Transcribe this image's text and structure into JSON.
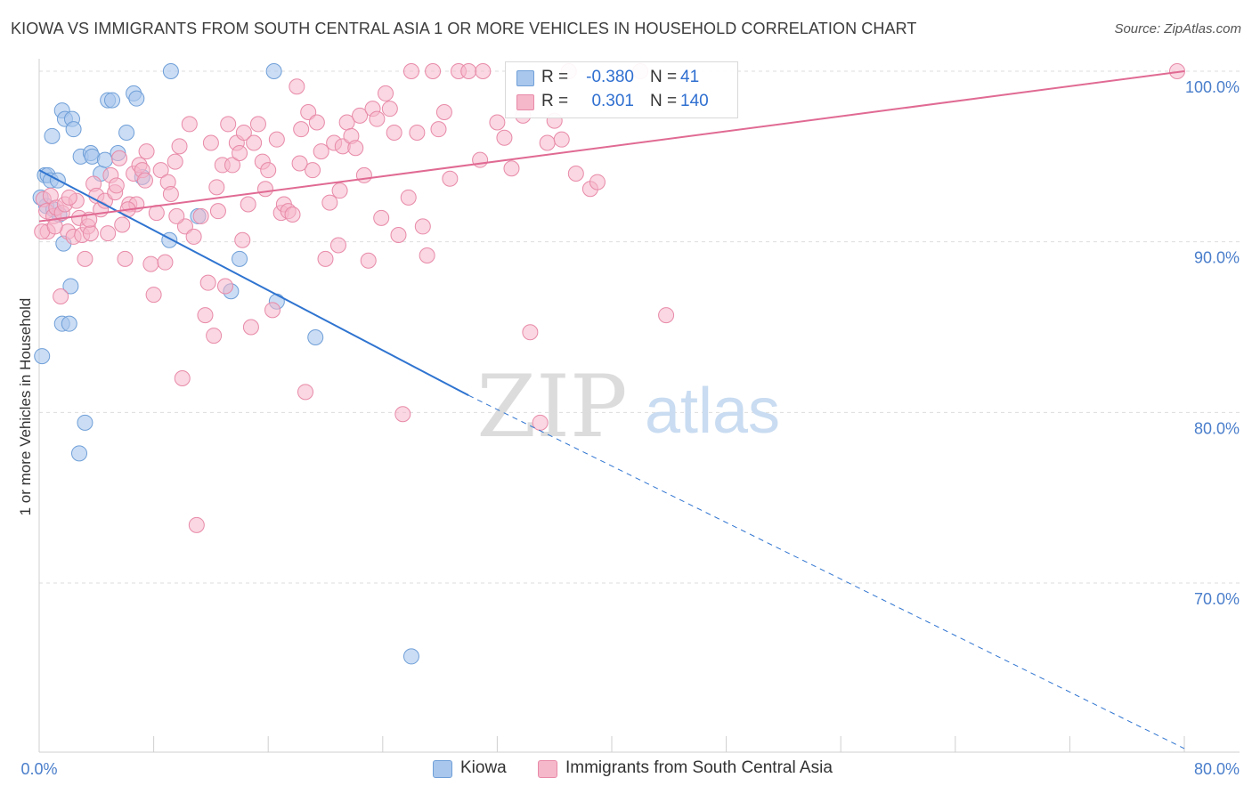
{
  "header": {
    "title": "KIOWA VS IMMIGRANTS FROM SOUTH CENTRAL ASIA 1 OR MORE VEHICLES IN HOUSEHOLD CORRELATION CHART",
    "source": "Source: ZipAtlas.com"
  },
  "watermark": {
    "zip": "ZIP",
    "atlas": "atlas"
  },
  "colors": {
    "blue_fill": "#a9c7ec",
    "blue_stroke": "#6f9fd8",
    "blue_line": "#2f74d0",
    "pink_fill": "#f5b7ca",
    "pink_stroke": "#e88aa8",
    "pink_line": "#e06a93",
    "tick_text": "#4a7ecb",
    "grid": "#dddddd"
  },
  "legend": {
    "rows": [
      {
        "r_label": "R =",
        "r_value": "-0.380",
        "n_label": "N =",
        "n_value": "41"
      },
      {
        "r_label": "R =",
        "r_value": "0.301",
        "n_label": "N =",
        "n_value": "140"
      }
    ]
  },
  "bottom_legend": {
    "kiowa": "Kiowa",
    "immigrants": "Immigrants from South Central Asia"
  },
  "chart_data": {
    "type": "scatter",
    "title": "KIOWA VS IMMIGRANTS FROM SOUTH CENTRAL ASIA 1 OR MORE VEHICLES IN HOUSEHOLD CORRELATION CHART",
    "xlabel": "",
    "ylabel": "1 or more Vehicles in Household",
    "xlim": [
      0,
      80
    ],
    "ylim": [
      60,
      102
    ],
    "x_tick_labels": [
      "0.0%",
      "80.0%"
    ],
    "y_ticks": [
      100,
      90,
      80,
      70
    ],
    "y_tick_labels": [
      "100.0%",
      "90.0%",
      "80.0%",
      "70.0%"
    ],
    "grid": true,
    "legend_position": "top-center",
    "series": [
      {
        "name": "Kiowa",
        "R": -0.38,
        "N": 41,
        "trend": {
          "x0": 0,
          "y0": 94.2,
          "x1": 30,
          "y1": 81.0,
          "dashed_to_x": 80,
          "dashed_to_y": 60.3
        },
        "points": [
          [
            0.2,
            83.3
          ],
          [
            0.4,
            93.9
          ],
          [
            0.5,
            92.1
          ],
          [
            0.6,
            93.9
          ],
          [
            0.8,
            93.6
          ],
          [
            0.9,
            96.2
          ],
          [
            1.0,
            91.9
          ],
          [
            1.3,
            93.6
          ],
          [
            1.4,
            91.6
          ],
          [
            1.6,
            97.7
          ],
          [
            1.6,
            85.2
          ],
          [
            1.7,
            89.9
          ],
          [
            1.8,
            97.2
          ],
          [
            2.1,
            85.2
          ],
          [
            2.2,
            87.4
          ],
          [
            2.3,
            97.2
          ],
          [
            2.4,
            96.6
          ],
          [
            2.8,
            77.6
          ],
          [
            2.9,
            95.0
          ],
          [
            3.2,
            79.4
          ],
          [
            3.6,
            95.2
          ],
          [
            3.7,
            95.0
          ],
          [
            4.3,
            94.0
          ],
          [
            4.6,
            94.8
          ],
          [
            4.8,
            98.3
          ],
          [
            5.1,
            98.3
          ],
          [
            5.5,
            95.2
          ],
          [
            6.1,
            96.4
          ],
          [
            6.6,
            98.7
          ],
          [
            6.8,
            98.4
          ],
          [
            7.2,
            93.8
          ],
          [
            9.1,
            90.1
          ],
          [
            9.2,
            100.0
          ],
          [
            11.1,
            91.5
          ],
          [
            13.4,
            87.1
          ],
          [
            14.0,
            89.0
          ],
          [
            16.4,
            100.0
          ],
          [
            16.6,
            86.5
          ],
          [
            19.3,
            84.4
          ],
          [
            26.0,
            65.7
          ],
          [
            0.1,
            92.6
          ]
        ]
      },
      {
        "name": "Immigrants from South Central Asia",
        "R": 0.301,
        "N": 140,
        "trend": {
          "x0": 0,
          "y0": 91.2,
          "x1": 80,
          "y1": 100.0
        },
        "points": [
          [
            0.3,
            92.5
          ],
          [
            0.5,
            91.8
          ],
          [
            0.6,
            90.6
          ],
          [
            0.8,
            92.7
          ],
          [
            1.0,
            91.5
          ],
          [
            1.2,
            92.0
          ],
          [
            1.5,
            86.8
          ],
          [
            1.6,
            91.7
          ],
          [
            1.8,
            92.2
          ],
          [
            2.0,
            90.6
          ],
          [
            2.4,
            90.3
          ],
          [
            2.6,
            92.4
          ],
          [
            2.8,
            91.4
          ],
          [
            3.0,
            90.4
          ],
          [
            3.2,
            89.0
          ],
          [
            3.4,
            90.9
          ],
          [
            3.6,
            90.5
          ],
          [
            3.8,
            93.4
          ],
          [
            4.0,
            92.7
          ],
          [
            4.3,
            91.9
          ],
          [
            4.6,
            92.4
          ],
          [
            4.8,
            90.5
          ],
          [
            5.0,
            93.9
          ],
          [
            5.3,
            92.9
          ],
          [
            5.6,
            94.9
          ],
          [
            5.8,
            91.0
          ],
          [
            6.0,
            89.0
          ],
          [
            6.3,
            92.2
          ],
          [
            6.6,
            94.0
          ],
          [
            6.8,
            92.2
          ],
          [
            7.0,
            94.5
          ],
          [
            7.2,
            94.2
          ],
          [
            7.5,
            95.3
          ],
          [
            7.8,
            88.7
          ],
          [
            8.0,
            86.9
          ],
          [
            8.2,
            91.7
          ],
          [
            8.5,
            94.2
          ],
          [
            8.8,
            88.8
          ],
          [
            9.0,
            93.5
          ],
          [
            9.2,
            92.8
          ],
          [
            9.5,
            94.7
          ],
          [
            9.8,
            95.6
          ],
          [
            10.0,
            82.0
          ],
          [
            10.2,
            90.9
          ],
          [
            10.5,
            96.9
          ],
          [
            10.8,
            90.3
          ],
          [
            11.0,
            73.4
          ],
          [
            11.3,
            91.5
          ],
          [
            11.6,
            85.7
          ],
          [
            11.8,
            87.6
          ],
          [
            12.0,
            95.8
          ],
          [
            12.2,
            84.5
          ],
          [
            12.5,
            91.8
          ],
          [
            12.8,
            94.5
          ],
          [
            13.0,
            87.4
          ],
          [
            13.2,
            96.9
          ],
          [
            13.5,
            94.5
          ],
          [
            13.8,
            95.8
          ],
          [
            14.0,
            95.2
          ],
          [
            14.3,
            96.4
          ],
          [
            14.6,
            92.2
          ],
          [
            14.8,
            85.0
          ],
          [
            15.0,
            95.8
          ],
          [
            15.3,
            96.9
          ],
          [
            15.6,
            94.7
          ],
          [
            15.8,
            93.1
          ],
          [
            16.0,
            94.2
          ],
          [
            16.3,
            86.0
          ],
          [
            16.6,
            96.0
          ],
          [
            16.9,
            91.7
          ],
          [
            17.1,
            92.2
          ],
          [
            17.4,
            91.8
          ],
          [
            17.7,
            91.6
          ],
          [
            18.0,
            99.1
          ],
          [
            18.3,
            96.6
          ],
          [
            18.6,
            81.2
          ],
          [
            18.8,
            97.6
          ],
          [
            19.1,
            94.2
          ],
          [
            19.4,
            97.0
          ],
          [
            19.7,
            95.3
          ],
          [
            20.0,
            89.0
          ],
          [
            20.3,
            92.3
          ],
          [
            20.6,
            95.8
          ],
          [
            20.9,
            89.8
          ],
          [
            21.2,
            95.6
          ],
          [
            21.5,
            97.0
          ],
          [
            21.8,
            96.2
          ],
          [
            22.1,
            95.5
          ],
          [
            22.4,
            97.4
          ],
          [
            22.7,
            93.9
          ],
          [
            23.0,
            88.9
          ],
          [
            23.3,
            97.8
          ],
          [
            23.6,
            97.2
          ],
          [
            23.9,
            91.4
          ],
          [
            24.2,
            98.7
          ],
          [
            24.5,
            97.8
          ],
          [
            24.8,
            96.4
          ],
          [
            25.1,
            90.4
          ],
          [
            25.4,
            79.9
          ],
          [
            26.0,
            100.0
          ],
          [
            26.4,
            96.4
          ],
          [
            26.8,
            90.9
          ],
          [
            27.1,
            89.2
          ],
          [
            27.5,
            100.0
          ],
          [
            27.9,
            96.6
          ],
          [
            28.3,
            97.6
          ],
          [
            28.7,
            93.7
          ],
          [
            29.3,
            100.0
          ],
          [
            30.0,
            100.0
          ],
          [
            31.0,
            100.0
          ],
          [
            32.0,
            97.0
          ],
          [
            32.5,
            96.1
          ],
          [
            33.0,
            94.3
          ],
          [
            33.8,
            97.4
          ],
          [
            34.3,
            84.7
          ],
          [
            35.0,
            79.4
          ],
          [
            35.5,
            95.8
          ],
          [
            36.0,
            97.1
          ],
          [
            36.5,
            96.0
          ],
          [
            37.0,
            100.0
          ],
          [
            37.5,
            94.0
          ],
          [
            38.5,
            93.1
          ],
          [
            39.0,
            93.5
          ],
          [
            42.0,
            100.0
          ],
          [
            43.8,
            85.7
          ],
          [
            79.5,
            100.0
          ],
          [
            0.2,
            90.6
          ],
          [
            1.1,
            90.9
          ],
          [
            2.1,
            92.6
          ],
          [
            3.5,
            91.3
          ],
          [
            5.4,
            93.3
          ],
          [
            6.2,
            91.9
          ],
          [
            7.4,
            93.6
          ],
          [
            9.6,
            91.5
          ],
          [
            12.4,
            93.2
          ],
          [
            14.2,
            90.1
          ],
          [
            18.2,
            94.6
          ],
          [
            21.0,
            93.0
          ],
          [
            25.8,
            92.6
          ],
          [
            30.8,
            94.8
          ]
        ]
      }
    ]
  }
}
